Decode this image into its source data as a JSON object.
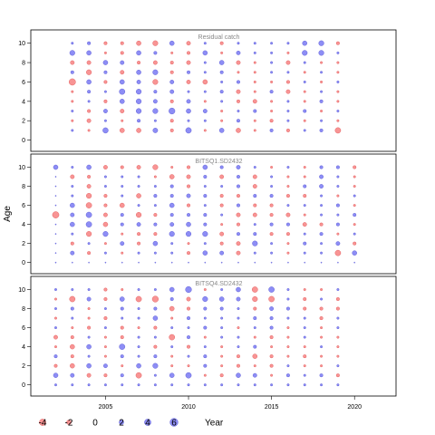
{
  "chart_data": {
    "type": "scatter",
    "xlabel": "Year",
    "ylabel": "Age",
    "xlim": [
      2000.5,
      2022.5
    ],
    "ylim": [
      -0.6,
      11
    ],
    "x_ticks": [
      2005,
      2010,
      2015,
      2020
    ],
    "y_ticks": [
      0,
      2,
      4,
      6,
      8,
      10
    ],
    "panels": [
      {
        "title": "Residual catch",
        "years": [
          2003,
          2004,
          2005,
          2006,
          2007,
          2008,
          2009,
          2010,
          2011,
          2012,
          2013,
          2014,
          2015,
          2016,
          2017,
          2018,
          2019
        ],
        "ages": [
          1,
          2,
          3,
          4,
          5,
          6,
          7,
          8,
          9,
          10
        ],
        "residuals": [
          [
            0.5,
            -0.5,
            2.8,
            -2.0,
            -2.0,
            2.2,
            -1.0,
            3.0,
            -0.5,
            2.0,
            -2.0,
            -0.5,
            1.0,
            -1.0,
            0.5,
            1.0,
            -3.0
          ],
          [
            -0.5,
            -1.5,
            0.5,
            -0.5,
            1.0,
            0.5,
            -1.0,
            0.5,
            0.5,
            -0.5,
            1.0,
            -0.5,
            -1.0,
            0.5,
            -0.5,
            0.5,
            -0.5
          ],
          [
            0.5,
            -1.0,
            1.5,
            -1.5,
            2.5,
            2.5,
            3.5,
            2.0,
            1.5,
            -0.5,
            0.5,
            1.0,
            -0.5,
            0.5,
            1.0,
            -0.5,
            0.5
          ],
          [
            -0.5,
            0.5,
            -1.0,
            2.0,
            2.5,
            1.5,
            -1.0,
            1.5,
            -0.5,
            0.5,
            -1.0,
            -1.5,
            -0.5,
            0.5,
            -0.5,
            1.0,
            -0.5
          ],
          [
            -0.5,
            1.0,
            0.5,
            3.0,
            2.5,
            1.0,
            1.5,
            0.5,
            0.5,
            1.0,
            -1.5,
            -0.5,
            1.0,
            -1.5,
            -0.5,
            0.5,
            -0.5
          ],
          [
            -4.0,
            2.0,
            -1.0,
            2.0,
            1.5,
            -2.5,
            1.5,
            -1.5,
            -2.0,
            0.5,
            1.0,
            -0.5,
            -0.5,
            -1.0,
            0.5,
            -0.5,
            0.5
          ],
          [
            1.0,
            -2.5,
            1.0,
            -1.5,
            2.0,
            2.5,
            -1.0,
            1.0,
            0.5,
            1.0,
            -0.5,
            -0.5,
            0.5,
            0.5,
            -0.5,
            0.5,
            -0.5
          ],
          [
            -1.5,
            -1.5,
            2.0,
            1.5,
            -1.0,
            -1.5,
            -1.0,
            -1.5,
            0.5,
            2.0,
            -1.5,
            -0.5,
            0.5,
            -1.5,
            0.5,
            -0.5,
            -0.5
          ],
          [
            2.5,
            2.0,
            -0.5,
            -1.0,
            2.0,
            1.0,
            -0.5,
            -1.0,
            2.0,
            -0.5,
            1.5,
            0.5,
            0.5,
            -0.5,
            2.5,
            2.5,
            0.5
          ],
          [
            0.5,
            1.0,
            -1.0,
            -1.0,
            -2.0,
            -2.5,
            2.0,
            -1.5,
            0.5,
            -1.0,
            0.5,
            0.5,
            0.5,
            0.5,
            2.0,
            2.5,
            -1.0
          ]
        ]
      },
      {
        "title": "BITSQ1.SD2432",
        "years": [
          2002,
          2003,
          2004,
          2005,
          2006,
          2007,
          2008,
          2009,
          2010,
          2011,
          2012,
          2013,
          2014,
          2015,
          2016,
          2017,
          2018,
          2019,
          2020
        ],
        "ages": [
          0,
          1,
          2,
          3,
          4,
          5,
          6,
          7,
          8,
          9,
          10
        ],
        "residuals": [
          [
            0.0,
            0.0,
            0.0,
            0.0,
            0.0,
            0.0,
            0.0,
            0.0,
            0.0,
            0.0,
            0.0,
            0.0,
            0.0,
            0.0,
            0.0,
            0.0,
            0.0,
            0.0,
            0.0
          ],
          [
            0.0,
            1.5,
            -1.0,
            0.5,
            -0.5,
            0.5,
            0.5,
            0.5,
            -1.0,
            2.0,
            1.5,
            -1.5,
            0.5,
            0.5,
            -0.5,
            0.5,
            0.5,
            -3.0,
            2.0
          ],
          [
            0.0,
            -1.0,
            0.5,
            -0.5,
            1.5,
            -1.0,
            2.0,
            0.5,
            -0.5,
            0.5,
            -1.0,
            -1.5,
            2.5,
            0.5,
            -0.5,
            1.0,
            0.5,
            1.5,
            -1.0
          ],
          [
            0.0,
            0.5,
            -2.5,
            2.5,
            -0.5,
            -1.0,
            -1.0,
            2.5,
            2.5,
            2.5,
            -1.5,
            1.0,
            1.0,
            -1.0,
            -1.0,
            0.5,
            1.0,
            -0.5,
            0.5
          ],
          [
            0.0,
            2.0,
            3.0,
            -2.0,
            1.0,
            1.5,
            1.0,
            1.5,
            2.0,
            1.0,
            -0.5,
            -1.0,
            0.5,
            1.0,
            1.0,
            -1.5,
            -1.0,
            1.0,
            -0.5
          ],
          [
            -4.0,
            1.5,
            3.0,
            -1.5,
            1.0,
            -2.5,
            -1.0,
            1.0,
            1.0,
            1.0,
            0.5,
            -1.5,
            -1.5,
            -1.0,
            -1.5,
            -0.5,
            0.5,
            0.5,
            1.0
          ],
          [
            0.0,
            2.0,
            -3.0,
            -1.0,
            -2.0,
            0.5,
            0.5,
            2.0,
            -1.0,
            0.5,
            -1.0,
            1.0,
            -1.0,
            -1.0,
            0.5,
            0.5,
            0.5,
            1.0,
            -0.5
          ],
          [
            0.0,
            0.5,
            -2.5,
            -1.0,
            0.5,
            -2.0,
            1.0,
            1.0,
            1.5,
            1.0,
            -1.0,
            -1.0,
            1.0,
            1.0,
            -1.0,
            -1.0,
            0.5,
            -0.5,
            0.5
          ],
          [
            0.0,
            0.5,
            -1.5,
            0.5,
            0.5,
            0.5,
            0.5,
            1.0,
            -1.0,
            0.5,
            0.5,
            1.0,
            -1.5,
            0.5,
            -0.5,
            1.0,
            1.5,
            0.5,
            -0.5
          ],
          [
            0.0,
            -1.5,
            -1.0,
            0.5,
            0.5,
            0.5,
            -0.5,
            -2.0,
            -1.5,
            1.0,
            -1.5,
            1.0,
            -1.5,
            0.5,
            -0.5,
            -0.5,
            1.5,
            0.5,
            -0.5
          ],
          [
            2.0,
            0.5,
            2.0,
            -1.5,
            -1.0,
            -1.5,
            -2.5,
            -0.5,
            -1.0,
            2.0,
            1.0,
            1.5,
            0.5,
            -0.5,
            0.5,
            -0.5,
            1.0,
            1.0,
            -1.0
          ]
        ]
      },
      {
        "title": "BITSQ4.SD2432",
        "years": [
          2002,
          2003,
          2004,
          2005,
          2006,
          2007,
          2008,
          2009,
          2010,
          2011,
          2012,
          2013,
          2014,
          2015,
          2016,
          2017,
          2018,
          2019
        ],
        "ages": [
          0,
          1,
          2,
          3,
          4,
          5,
          6,
          7,
          8,
          9,
          10
        ],
        "residuals": [
          [
            0.5,
            0.5,
            0.5,
            0.5,
            0.5,
            0.5,
            0.5,
            0.5,
            0.5,
            0.5,
            0.5,
            0.5,
            0.5,
            0.5,
            0.5,
            0.5,
            0.5,
            0.5
          ],
          [
            2.0,
            1.5,
            -1.5,
            -1.0,
            1.0,
            -3.0,
            0.5,
            2.0,
            3.0,
            -0.5,
            -1.0,
            2.0,
            1.5,
            -0.5,
            1.0,
            0.5,
            1.0,
            -1.0
          ],
          [
            -1.0,
            -2.0,
            2.0,
            1.5,
            -0.5,
            2.0,
            2.5,
            -0.5,
            -0.5,
            1.0,
            -0.5,
            -1.0,
            -0.5,
            -1.0,
            0.5,
            -0.5,
            -0.5,
            0.5
          ],
          [
            1.0,
            -1.0,
            0.5,
            -0.5,
            1.0,
            0.5,
            1.0,
            -0.5,
            0.5,
            1.0,
            -0.5,
            -1.0,
            -2.0,
            -1.0,
            -0.5,
            -1.0,
            -0.5,
            -0.5
          ],
          [
            -0.5,
            -2.0,
            2.0,
            -0.5,
            3.0,
            0.5,
            -1.0,
            0.5,
            -1.0,
            0.5,
            -0.5,
            0.5,
            1.0,
            -0.5,
            -0.5,
            -0.5,
            0.5,
            -0.5
          ],
          [
            -1.5,
            -1.0,
            0.5,
            -0.5,
            -1.0,
            0.5,
            0.5,
            -3.0,
            1.0,
            -0.5,
            0.5,
            0.5,
            -0.5,
            -1.0,
            -0.5,
            0.5,
            -0.5,
            -0.5
          ],
          [
            0.5,
            -0.5,
            -1.0,
            0.5,
            -1.0,
            -0.5,
            -1.0,
            0.5,
            0.5,
            1.0,
            0.5,
            -0.5,
            0.5,
            1.0,
            -0.5,
            0.5,
            -0.5,
            0.5
          ],
          [
            -0.5,
            0.5,
            -0.5,
            -1.0,
            0.5,
            0.5,
            2.0,
            -0.5,
            1.0,
            0.5,
            0.5,
            0.5,
            1.0,
            1.0,
            0.5,
            0.5,
            -1.0,
            0.5
          ],
          [
            0.5,
            1.0,
            -0.5,
            0.5,
            1.0,
            0.5,
            1.0,
            -2.0,
            -1.0,
            1.0,
            1.0,
            0.5,
            -1.0,
            1.5,
            1.0,
            -1.0,
            -1.0,
            -1.0
          ],
          [
            -0.5,
            -3.0,
            1.5,
            -1.0,
            2.0,
            -3.0,
            -3.5,
            1.0,
            -1.5,
            2.5,
            2.0,
            1.5,
            -2.5,
            -3.0,
            0.5,
            -1.0,
            0.5,
            -1.0
          ],
          [
            0.5,
            0.5,
            0.5,
            -1.0,
            -0.5,
            0.5,
            0.5,
            2.0,
            3.5,
            -0.5,
            0.5,
            2.0,
            -3.0,
            3.0,
            0.5,
            -0.5,
            -0.5,
            0.5
          ]
        ]
      }
    ],
    "legend": {
      "values": [
        -4,
        -2,
        0,
        2,
        4,
        6
      ],
      "labels": [
        "-4",
        "-2",
        "0",
        "2",
        "4",
        "6"
      ],
      "title": "Year"
    },
    "colors": {
      "positive": "#5050f0",
      "negative": "#f55a5a"
    }
  }
}
